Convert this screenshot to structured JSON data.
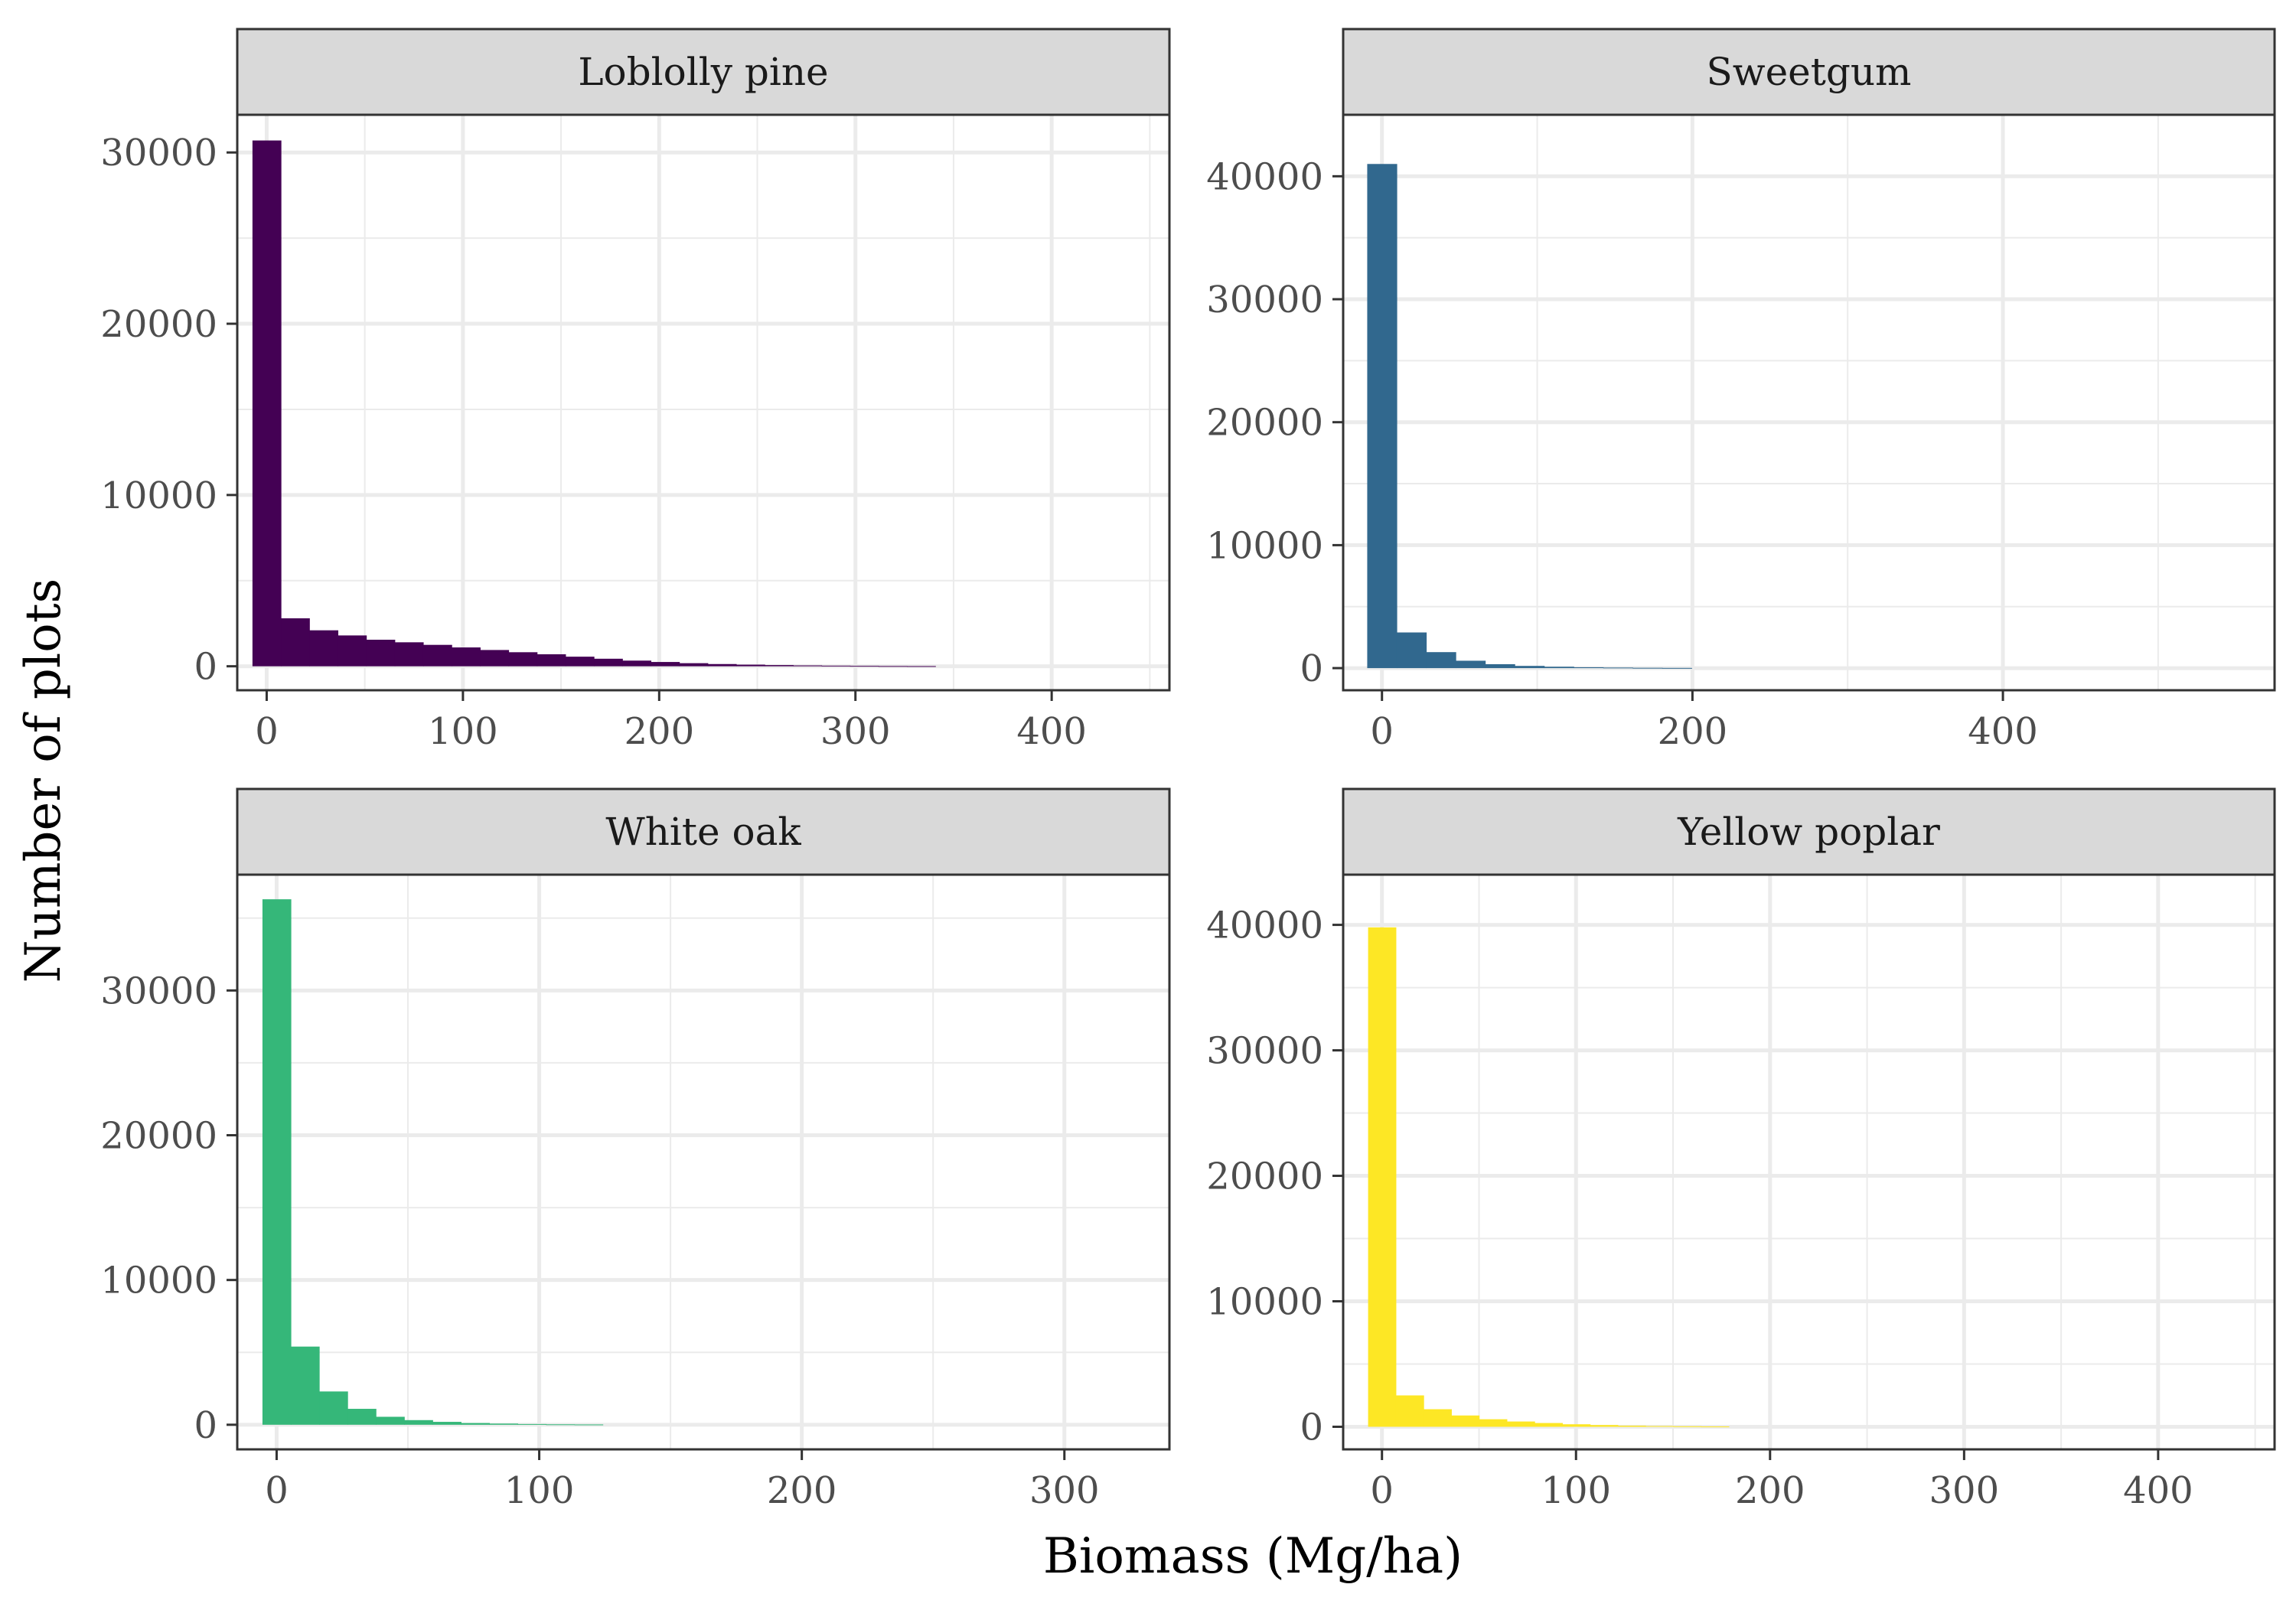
{
  "chart_data": [
    {
      "type": "bar",
      "title": "Loblolly pine",
      "color": "#440154",
      "bin_width": 14.5,
      "xlim": [
        -15,
        460
      ],
      "ylim": [
        -1400,
        32200
      ],
      "x_ticks": [
        0,
        100,
        200,
        300,
        400
      ],
      "y_ticks": [
        0,
        10000,
        20000,
        30000
      ],
      "x": [
        0,
        14.5,
        29,
        43.5,
        58,
        72.5,
        87,
        101.5,
        116,
        130.5,
        145,
        159.5,
        174,
        188.5,
        203,
        217.5,
        232,
        246.5,
        261,
        275.5,
        290,
        304.5,
        319,
        333.5
      ],
      "values": [
        30700,
        2800,
        2100,
        1800,
        1550,
        1400,
        1250,
        1100,
        950,
        820,
        700,
        560,
        440,
        330,
        250,
        180,
        130,
        95,
        70,
        50,
        35,
        25,
        15,
        10
      ]
    },
    {
      "type": "bar",
      "title": "Sweetgum",
      "color": "#31688e",
      "bin_width": 19,
      "xlim": [
        -25,
        575
      ],
      "ylim": [
        -1800,
        45000
      ],
      "x_ticks": [
        0,
        200,
        400
      ],
      "y_ticks": [
        0,
        10000,
        20000,
        30000,
        40000
      ],
      "x": [
        0,
        19,
        38,
        57,
        76,
        95,
        114,
        133,
        152,
        171,
        190
      ],
      "values": [
        41000,
        2900,
        1300,
        600,
        320,
        180,
        110,
        70,
        45,
        25,
        15
      ]
    },
    {
      "type": "bar",
      "title": "White oak",
      "color": "#35b779",
      "bin_width": 10.8,
      "xlim": [
        -15,
        340
      ],
      "ylim": [
        -1700,
        38000
      ],
      "x_ticks": [
        0,
        100,
        200,
        300
      ],
      "y_ticks": [
        0,
        10000,
        20000,
        30000
      ],
      "x": [
        0,
        10.8,
        21.6,
        32.4,
        43.2,
        54,
        64.8,
        75.6,
        86.4,
        97.2,
        108,
        118.8
      ],
      "values": [
        36300,
        5400,
        2300,
        1100,
        550,
        320,
        200,
        120,
        80,
        50,
        30,
        20
      ]
    },
    {
      "type": "bar",
      "title": "Yellow poplar",
      "color": "#fde725",
      "bin_width": 14.3,
      "xlim": [
        -20,
        460
      ],
      "ylim": [
        -1800,
        44000
      ],
      "x_ticks": [
        0,
        100,
        200,
        300,
        400
      ],
      "y_ticks": [
        0,
        10000,
        20000,
        30000,
        40000
      ],
      "x": [
        0,
        14.3,
        28.6,
        42.9,
        57.2,
        71.5,
        85.8,
        100.1,
        114.4,
        128.7,
        143,
        157.3,
        171.6
      ],
      "values": [
        39800,
        2500,
        1400,
        900,
        600,
        420,
        300,
        200,
        140,
        90,
        60,
        40,
        25
      ]
    }
  ],
  "xlabel": "Biomass (Mg/ha)",
  "ylabel": "Number of plots"
}
